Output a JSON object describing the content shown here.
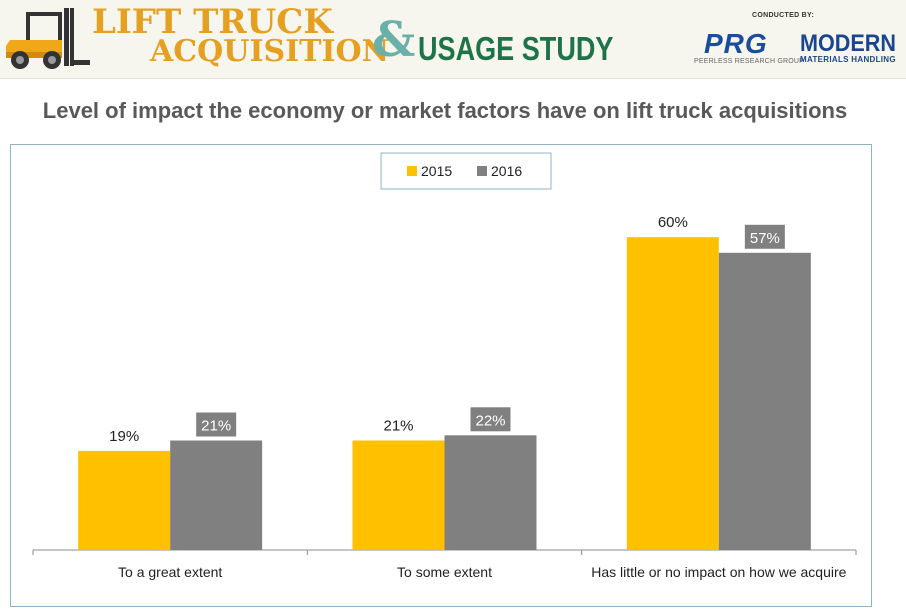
{
  "banner": {
    "title_line1": "LIFT TRUCK",
    "title_line2": "ACQUISITION",
    "ampersand": "&",
    "title_line3": "USAGE STUDY",
    "conducted_by": "CONDUCTED BY:",
    "prg_logo": "PRG",
    "prg_sub": "PEERLESS RESEARCH GROUP",
    "modern_logo": "MODERN",
    "mmh_sub": "MATERIALS HANDLING"
  },
  "chart_data": {
    "type": "bar",
    "title": "Level of impact the economy or market factors have on lift truck acquisitions",
    "categories": [
      "To a great extent",
      "To some extent",
      "Has little or no impact on how we acquire"
    ],
    "series": [
      {
        "name": "2015",
        "values": [
          19,
          21,
          60
        ],
        "labels": [
          "19%",
          "21%",
          "60%"
        ],
        "color": "#FFC000"
      },
      {
        "name": "2016",
        "values": [
          21,
          22,
          57
        ],
        "labels": [
          "21%",
          "22%",
          "57%"
        ],
        "color": "#808080"
      }
    ],
    "ylim": [
      0,
      70
    ],
    "grid": false,
    "legend_position": "top-center"
  },
  "colors": {
    "series_2015": "#FFC000",
    "series_2016": "#808080",
    "label_2016_text": "#ffffff",
    "title": "#595959"
  }
}
